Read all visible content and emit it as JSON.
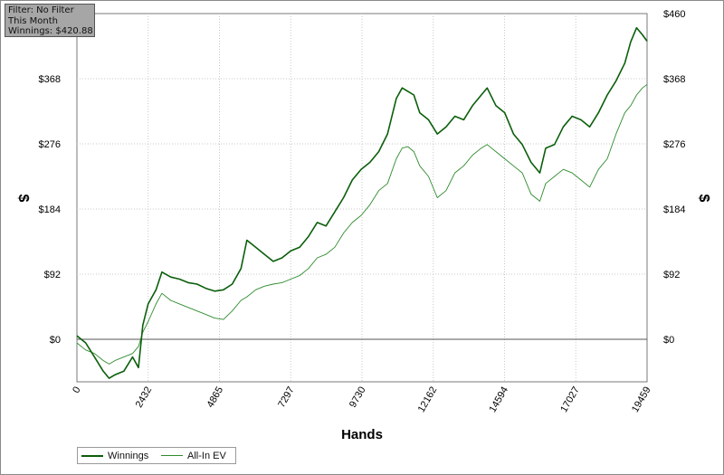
{
  "filter_box": {
    "line1": "Filter: No Filter",
    "line2": "This Month",
    "line3": "Winnings: $420.88"
  },
  "colors": {
    "winnings": "#0b5e0b",
    "allin_ev": "#2e8b2e",
    "grid": "#c8c8c8",
    "zero_line": "#555555"
  },
  "chart_data": {
    "type": "line",
    "title": "",
    "xlabel": "Hands",
    "ylabel": "$",
    "xlim": [
      0,
      19459
    ],
    "ylim": [
      -60,
      460
    ],
    "x_ticks": [
      "0",
      "2432",
      "4865",
      "7297",
      "9730",
      "12162",
      "14594",
      "17027",
      "19459"
    ],
    "y_ticks": [
      "$0",
      "$92",
      "$184",
      "$276",
      "$368",
      "$460"
    ],
    "grid": true,
    "legend_position": "bottom-left",
    "series": [
      {
        "name": "Winnings",
        "x": [
          0,
          300,
          600,
          900,
          1100,
          1300,
          1600,
          1900,
          2100,
          2250,
          2432,
          2700,
          2900,
          3200,
          3500,
          3800,
          4100,
          4400,
          4700,
          5000,
          5300,
          5600,
          5800,
          6100,
          6400,
          6700,
          7000,
          7300,
          7600,
          7900,
          8200,
          8500,
          8800,
          9100,
          9400,
          9700,
          10000,
          10300,
          10600,
          10900,
          11100,
          11300,
          11500,
          11700,
          12000,
          12300,
          12600,
          12900,
          13200,
          13500,
          13800,
          14000,
          14300,
          14600,
          14900,
          15200,
          15500,
          15800,
          16000,
          16300,
          16600,
          16900,
          17200,
          17500,
          17800,
          18100,
          18400,
          18700,
          18900,
          19100,
          19300,
          19459
        ],
        "values": [
          5,
          -5,
          -25,
          -45,
          -55,
          -50,
          -45,
          -25,
          -40,
          20,
          50,
          70,
          95,
          88,
          85,
          80,
          78,
          72,
          68,
          70,
          78,
          100,
          140,
          130,
          120,
          110,
          115,
          125,
          130,
          145,
          165,
          160,
          180,
          200,
          225,
          240,
          250,
          265,
          290,
          340,
          355,
          350,
          345,
          320,
          310,
          290,
          300,
          315,
          310,
          330,
          345,
          355,
          330,
          320,
          290,
          275,
          250,
          235,
          270,
          275,
          300,
          315,
          310,
          300,
          320,
          345,
          365,
          390,
          420,
          440,
          430,
          421
        ]
      },
      {
        "name": "All-In EV",
        "x": [
          0,
          300,
          600,
          900,
          1100,
          1300,
          1600,
          1900,
          2100,
          2250,
          2432,
          2700,
          2900,
          3200,
          3500,
          3800,
          4100,
          4400,
          4700,
          5000,
          5300,
          5600,
          5800,
          6100,
          6400,
          6700,
          7000,
          7300,
          7600,
          7900,
          8200,
          8500,
          8800,
          9100,
          9400,
          9700,
          10000,
          10300,
          10600,
          10900,
          11100,
          11300,
          11500,
          11700,
          12000,
          12300,
          12600,
          12900,
          13200,
          13500,
          13800,
          14000,
          14300,
          14600,
          14900,
          15200,
          15500,
          15800,
          16000,
          16300,
          16600,
          16900,
          17200,
          17500,
          17800,
          18100,
          18400,
          18700,
          18900,
          19100,
          19300,
          19459
        ],
        "values": [
          -5,
          -15,
          -20,
          -30,
          -35,
          -30,
          -25,
          -20,
          -10,
          10,
          25,
          50,
          65,
          55,
          50,
          45,
          40,
          35,
          30,
          28,
          40,
          55,
          60,
          70,
          75,
          78,
          80,
          85,
          90,
          100,
          115,
          120,
          130,
          150,
          165,
          175,
          190,
          210,
          220,
          255,
          270,
          272,
          265,
          245,
          230,
          200,
          210,
          235,
          245,
          260,
          270,
          275,
          265,
          255,
          245,
          235,
          205,
          195,
          220,
          230,
          240,
          235,
          225,
          215,
          240,
          255,
          290,
          320,
          330,
          345,
          355,
          360
        ]
      }
    ]
  }
}
